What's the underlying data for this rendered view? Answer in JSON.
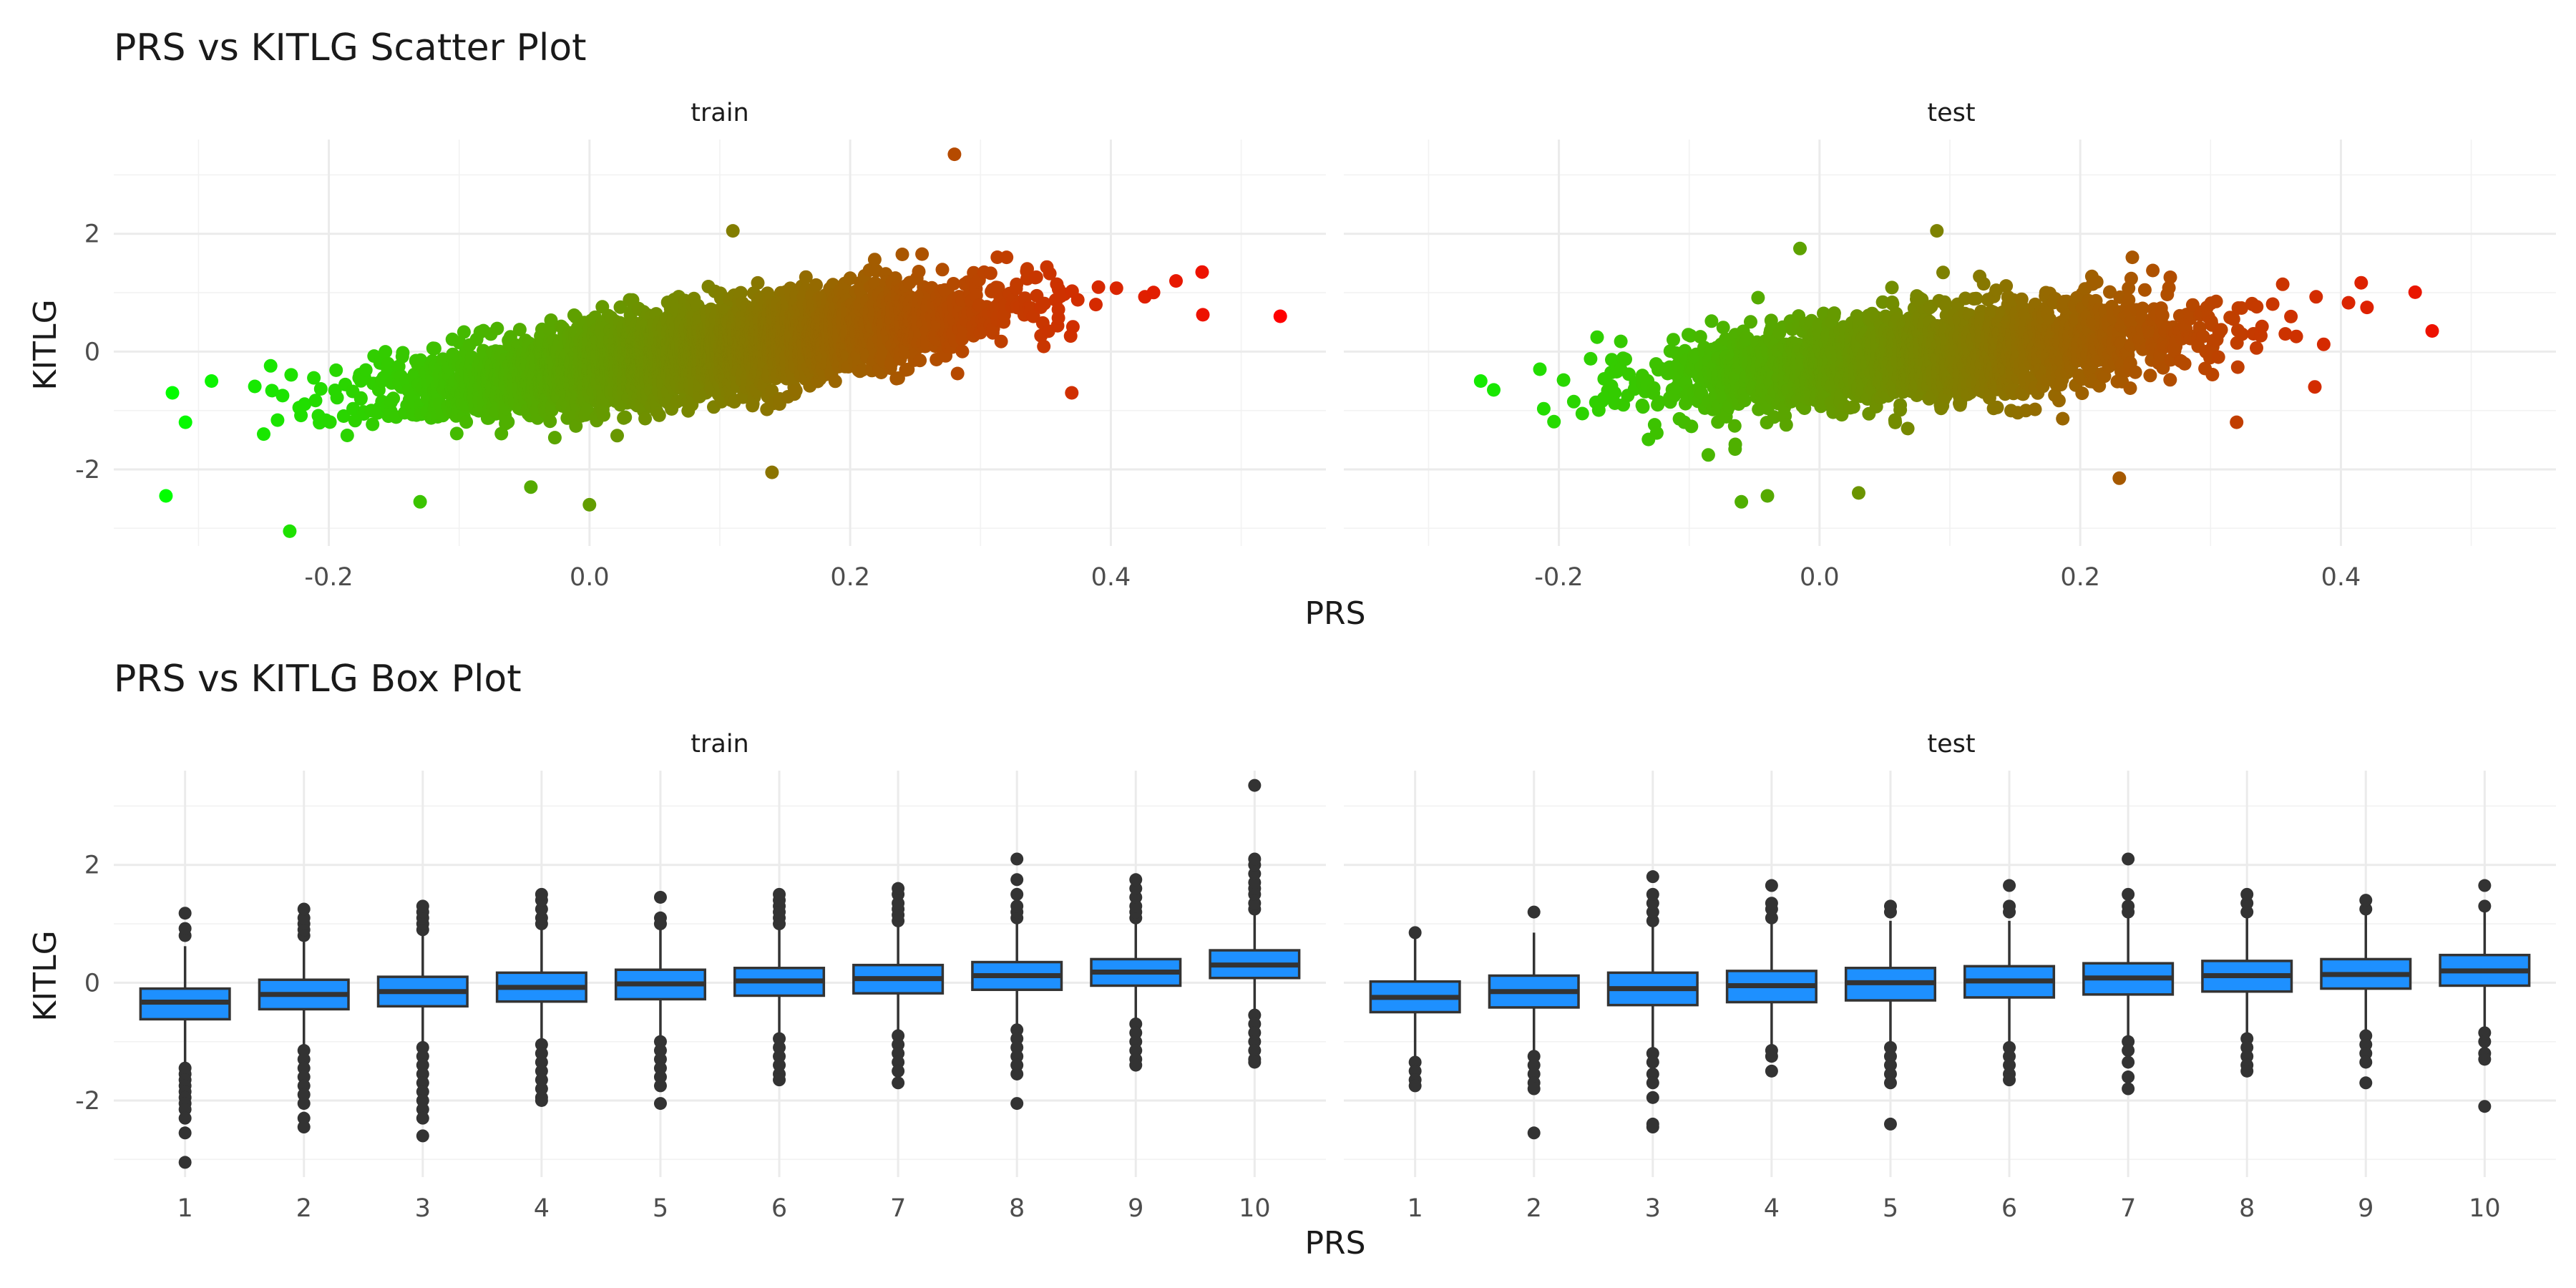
{
  "chart_data": [
    {
      "type": "scatter",
      "title": "PRS vs KITLG Scatter Plot",
      "xlabel": "PRS",
      "ylabel": "KITLG",
      "xlim": [
        -0.365,
        0.565
      ],
      "ylim": [
        -3.3,
        3.6
      ],
      "x_ticks": [
        "-0.2",
        "0.0",
        "0.2",
        "0.4"
      ],
      "y_ticks": [
        "-2",
        "0",
        "2"
      ],
      "color_gradient": [
        "#00ff00",
        "#ff0000"
      ],
      "facets": [
        {
          "label": "train",
          "n_points": 6000,
          "x_mean": 0.08,
          "x_sd": 0.1,
          "slope": 3.1,
          "intercept": -0.25,
          "noise_sd": 0.33,
          "x_range": [
            -0.33,
            0.53
          ],
          "outliers": [
            {
              "x": 0.28,
              "y": 3.35
            },
            {
              "x": 0.53,
              "y": 0.6
            },
            {
              "x": -0.325,
              "y": -2.45
            },
            {
              "x": -0.23,
              "y": -3.05
            },
            {
              "x": -0.32,
              "y": -0.7
            },
            {
              "x": -0.31,
              "y": -1.2
            },
            {
              "x": -0.29,
              "y": -0.5
            },
            {
              "x": -0.13,
              "y": -2.55
            },
            {
              "x": 0.0,
              "y": -2.6
            },
            {
              "x": 0.11,
              "y": 2.05
            },
            {
              "x": 0.14,
              "y": -2.05
            },
            {
              "x": 0.24,
              "y": 1.65
            },
            {
              "x": 0.32,
              "y": 1.6
            },
            {
              "x": 0.45,
              "y": 1.2
            },
            {
              "x": 0.47,
              "y": 1.35
            },
            {
              "x": -0.25,
              "y": -1.4
            },
            {
              "x": -0.045,
              "y": -2.3
            },
            {
              "x": 0.37,
              "y": -0.7
            }
          ]
        },
        {
          "label": "test",
          "n_points": 2600,
          "x_mean": 0.08,
          "x_sd": 0.1,
          "slope": 1.9,
          "intercept": -0.22,
          "noise_sd": 0.38,
          "x_range": [
            -0.27,
            0.47
          ],
          "outliers": [
            {
              "x": 0.47,
              "y": 0.35
            },
            {
              "x": -0.26,
              "y": -0.5
            },
            {
              "x": -0.25,
              "y": -0.65
            },
            {
              "x": 0.23,
              "y": -2.15
            },
            {
              "x": -0.06,
              "y": -2.55
            },
            {
              "x": 0.09,
              "y": 2.05
            },
            {
              "x": -0.015,
              "y": 1.75
            },
            {
              "x": 0.24,
              "y": 1.6
            },
            {
              "x": 0.38,
              "y": -0.6
            },
            {
              "x": 0.42,
              "y": 0.75
            },
            {
              "x": 0.32,
              "y": -1.2
            },
            {
              "x": 0.03,
              "y": -2.4
            },
            {
              "x": -0.04,
              "y": -2.45
            }
          ]
        }
      ]
    },
    {
      "type": "box",
      "title": "PRS vs KITLG Box Plot",
      "xlabel": "PRS",
      "ylabel": "KITLG",
      "ylim": [
        -3.3,
        3.6
      ],
      "categories": [
        "1",
        "2",
        "3",
        "4",
        "5",
        "6",
        "7",
        "8",
        "9",
        "10"
      ],
      "y_ticks": [
        "-2",
        "0",
        "2"
      ],
      "fill_color": "#1e90ff",
      "facets": [
        {
          "label": "train",
          "boxes": [
            {
              "q1": -0.62,
              "median": -0.33,
              "q3": -0.1,
              "lo": -1.35,
              "hi": 0.62,
              "out_lo": [
                -1.45,
                -1.55,
                -1.65,
                -1.75,
                -1.85,
                -1.95,
                -2.05,
                -2.15,
                -2.3,
                -2.55,
                -3.05
              ],
              "out_hi": [
                0.8,
                0.92,
                1.18
              ]
            },
            {
              "q1": -0.45,
              "median": -0.2,
              "q3": 0.05,
              "lo": -1.1,
              "hi": 0.75,
              "out_lo": [
                -1.15,
                -1.3,
                -1.45,
                -1.6,
                -1.75,
                -1.9,
                -2.05,
                -2.3,
                -2.45
              ],
              "out_hi": [
                0.8,
                0.9,
                1.0,
                1.1,
                1.25
              ]
            },
            {
              "q1": -0.4,
              "median": -0.15,
              "q3": 0.1,
              "lo": -1.05,
              "hi": 0.8,
              "out_lo": [
                -1.1,
                -1.25,
                -1.4,
                -1.55,
                -1.7,
                -1.85,
                -2.0,
                -2.15,
                -2.3,
                -2.6
              ],
              "out_hi": [
                0.9,
                1.0,
                1.1,
                1.2,
                1.3
              ]
            },
            {
              "q1": -0.32,
              "median": -0.08,
              "q3": 0.17,
              "lo": -0.95,
              "hi": 0.9,
              "out_lo": [
                -1.05,
                -1.2,
                -1.35,
                -1.5,
                -1.65,
                -1.8,
                -1.95,
                -2.0
              ],
              "out_hi": [
                1.0,
                1.1,
                1.25,
                1.4,
                1.5
              ]
            },
            {
              "q1": -0.28,
              "median": -0.02,
              "q3": 0.22,
              "lo": -0.95,
              "hi": 0.95,
              "out_lo": [
                -1.0,
                -1.15,
                -1.3,
                -1.45,
                -1.6,
                -1.75,
                -2.05
              ],
              "out_hi": [
                1.0,
                1.1,
                1.45
              ]
            },
            {
              "q1": -0.22,
              "median": 0.03,
              "q3": 0.25,
              "lo": -0.9,
              "hi": 0.95,
              "out_lo": [
                -0.95,
                -1.1,
                -1.25,
                -1.4,
                -1.55,
                -1.65
              ],
              "out_hi": [
                1.0,
                1.1,
                1.2,
                1.3,
                1.4,
                1.5
              ]
            },
            {
              "q1": -0.18,
              "median": 0.07,
              "q3": 0.3,
              "lo": -0.85,
              "hi": 1.0,
              "out_lo": [
                -0.9,
                -1.05,
                -1.2,
                -1.35,
                -1.5,
                -1.7
              ],
              "out_hi": [
                1.05,
                1.15,
                1.25,
                1.35,
                1.5,
                1.6
              ]
            },
            {
              "q1": -0.12,
              "median": 0.12,
              "q3": 0.35,
              "lo": -0.75,
              "hi": 1.05,
              "out_lo": [
                -0.8,
                -0.95,
                -1.1,
                -1.25,
                -1.4,
                -1.55,
                -2.05
              ],
              "out_hi": [
                1.1,
                1.2,
                1.3,
                1.5,
                1.75,
                2.1
              ]
            },
            {
              "q1": -0.05,
              "median": 0.18,
              "q3": 0.4,
              "lo": -0.65,
              "hi": 1.05,
              "out_lo": [
                -0.7,
                -0.85,
                -1.0,
                -1.15,
                -1.3,
                -1.4
              ],
              "out_hi": [
                1.1,
                1.2,
                1.3,
                1.45,
                1.6,
                1.75
              ]
            },
            {
              "q1": 0.08,
              "median": 0.3,
              "q3": 0.55,
              "lo": -0.5,
              "hi": 1.2,
              "out_lo": [
                -0.55,
                -0.7,
                -0.85,
                -1.0,
                -1.15,
                -1.3,
                -1.35
              ],
              "out_hi": [
                1.25,
                1.35,
                1.5,
                1.6,
                1.7,
                1.85,
                2.0,
                2.1,
                3.35
              ]
            }
          ]
        },
        {
          "label": "test",
          "boxes": [
            {
              "q1": -0.5,
              "median": -0.25,
              "q3": 0.02,
              "lo": -1.25,
              "hi": 0.82,
              "out_lo": [
                -1.35,
                -1.5,
                -1.65,
                -1.75
              ],
              "out_hi": [
                0.85
              ]
            },
            {
              "q1": -0.42,
              "median": -0.15,
              "q3": 0.12,
              "lo": -1.2,
              "hi": 0.85,
              "out_lo": [
                -1.25,
                -1.4,
                -1.55,
                -1.7,
                -1.8,
                -2.55
              ],
              "out_hi": [
                1.2
              ]
            },
            {
              "q1": -0.38,
              "median": -0.1,
              "q3": 0.17,
              "lo": -1.15,
              "hi": 0.95,
              "out_lo": [
                -1.2,
                -1.35,
                -1.55,
                -1.7,
                -1.95,
                -2.4,
                -2.45
              ],
              "out_hi": [
                1.05,
                1.2,
                1.35,
                1.5,
                1.8
              ]
            },
            {
              "q1": -0.33,
              "median": -0.05,
              "q3": 0.2,
              "lo": -1.1,
              "hi": 1.0,
              "out_lo": [
                -1.15,
                -1.25,
                -1.5
              ],
              "out_hi": [
                1.1,
                1.25,
                1.35,
                1.65
              ]
            },
            {
              "q1": -0.3,
              "median": 0.0,
              "q3": 0.25,
              "lo": -1.05,
              "hi": 1.05,
              "out_lo": [
                -1.1,
                -1.25,
                -1.4,
                -1.55,
                -1.7,
                -2.4
              ],
              "out_hi": [
                1.2,
                1.3
              ]
            },
            {
              "q1": -0.25,
              "median": 0.03,
              "q3": 0.28,
              "lo": -1.0,
              "hi": 1.05,
              "out_lo": [
                -1.1,
                -1.25,
                -1.4,
                -1.55,
                -1.65
              ],
              "out_hi": [
                1.2,
                1.3,
                1.65
              ]
            },
            {
              "q1": -0.2,
              "median": 0.08,
              "q3": 0.33,
              "lo": -0.95,
              "hi": 1.1,
              "out_lo": [
                -1.0,
                -1.15,
                -1.35,
                -1.6,
                -1.8
              ],
              "out_hi": [
                1.2,
                1.3,
                1.5,
                2.1
              ]
            },
            {
              "q1": -0.15,
              "median": 0.12,
              "q3": 0.37,
              "lo": -0.9,
              "hi": 1.1,
              "out_lo": [
                -0.95,
                -1.1,
                -1.25,
                -1.4,
                -1.5
              ],
              "out_hi": [
                1.2,
                1.35,
                1.5
              ]
            },
            {
              "q1": -0.1,
              "median": 0.14,
              "q3": 0.4,
              "lo": -0.85,
              "hi": 1.15,
              "out_lo": [
                -0.9,
                -1.05,
                -1.2,
                -1.35,
                -1.7
              ],
              "out_hi": [
                1.25,
                1.4
              ]
            },
            {
              "q1": -0.05,
              "median": 0.2,
              "q3": 0.47,
              "lo": -0.8,
              "hi": 1.2,
              "out_lo": [
                -0.85,
                -1.0,
                -1.2,
                -1.3,
                -2.1
              ],
              "out_hi": [
                1.3,
                1.65
              ]
            }
          ]
        }
      ]
    }
  ]
}
